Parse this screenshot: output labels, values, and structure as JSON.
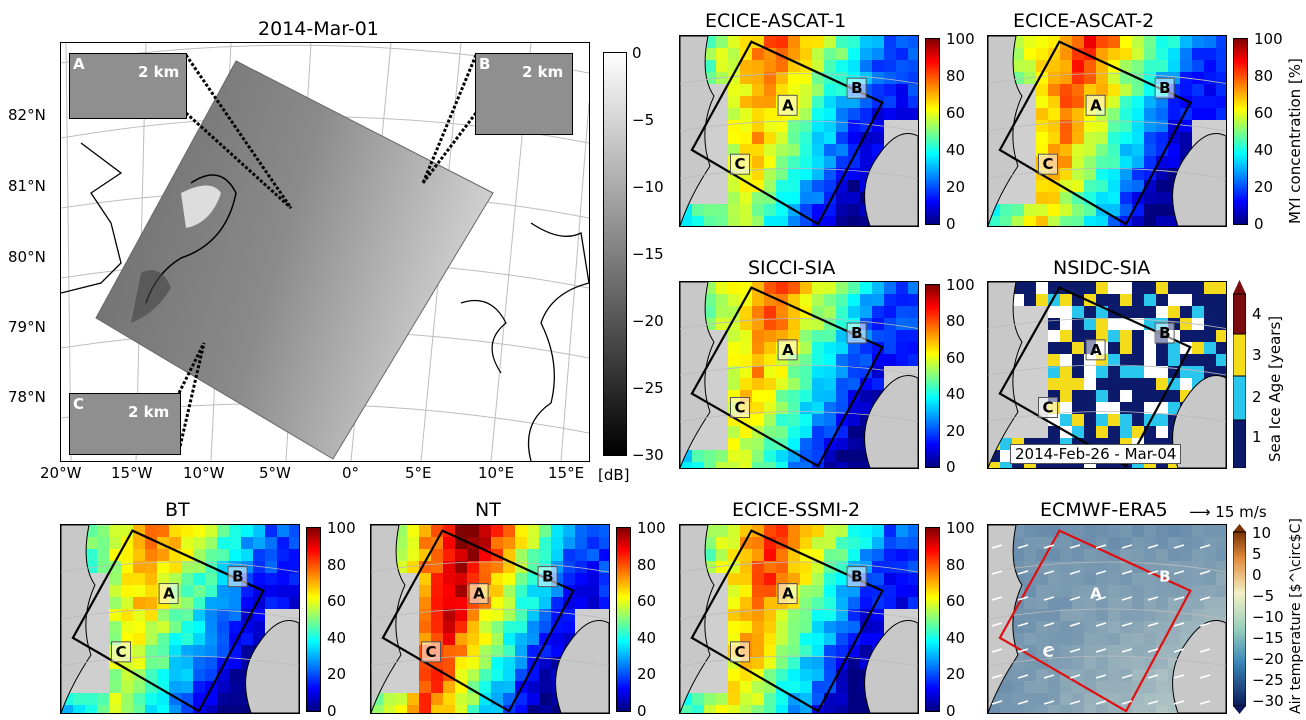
{
  "main_panel": {
    "title": "2014-Mar-01",
    "lat_ticks": [
      "82°N",
      "81°N",
      "80°N",
      "79°N",
      "78°N"
    ],
    "lon_ticks": [
      "20°W",
      "15°W",
      "10°W",
      "5°W",
      "0°",
      "5°E",
      "10°E",
      "15°E"
    ],
    "colorbar": {
      "ticks": [
        "0",
        "−5",
        "−10",
        "−15",
        "−20",
        "−25",
        "−30"
      ],
      "unit": "[dB]",
      "range": [
        -30,
        0
      ]
    },
    "insets": [
      {
        "letter": "A",
        "scale": "2 km"
      },
      {
        "letter": "B",
        "scale": "2 km"
      },
      {
        "letter": "C",
        "scale": "2 km"
      }
    ]
  },
  "panels": [
    {
      "id": "ecice-ascat-1",
      "title": "ECICE-ASCAT-1",
      "labels": [
        "A",
        "B",
        "C"
      ],
      "box_color": "#000000"
    },
    {
      "id": "ecice-ascat-2",
      "title": "ECICE-ASCAT-2",
      "labels": [
        "A",
        "B",
        "C"
      ],
      "box_color": "#000000"
    },
    {
      "id": "sicci-sia",
      "title": "SICCI-SIA",
      "labels": [
        "A",
        "B",
        "C"
      ],
      "box_color": "#000000"
    },
    {
      "id": "nsidc-sia",
      "title": "NSIDC-SIA",
      "labels": [
        "A",
        "B",
        "C"
      ],
      "box_color": "#000000",
      "date_range": "2014-Feb-26 - Mar-04"
    },
    {
      "id": "bt",
      "title": "BT",
      "labels": [
        "A",
        "B",
        "C"
      ],
      "box_color": "#000000"
    },
    {
      "id": "nt",
      "title": "NT",
      "labels": [
        "A",
        "B",
        "C"
      ],
      "box_color": "#000000"
    },
    {
      "id": "ecice-ssmi-2",
      "title": "ECICE-SSMI-2",
      "labels": [
        "A",
        "B",
        "C"
      ],
      "box_color": "#000000"
    },
    {
      "id": "ecmwf-era5",
      "title": "ECMWF-ERA5",
      "labels": [
        "A",
        "B",
        "C"
      ],
      "box_color": "#e01010",
      "wind_key": "15 m/s"
    }
  ],
  "colorbars": {
    "myi": {
      "ticks": [
        "100",
        "80",
        "60",
        "40",
        "20",
        "0"
      ],
      "label": "MYI concentration [%]",
      "range": [
        0,
        100
      ]
    },
    "plain": {
      "ticks": [
        "100",
        "80",
        "60",
        "40",
        "20",
        "0"
      ],
      "range": [
        0,
        100
      ]
    },
    "age": {
      "ticks": [
        "4",
        "3",
        "2",
        "1"
      ],
      "label": "Sea Ice Age [years]",
      "colors": [
        "#0b1a6b",
        "#29c6ee",
        "#f5dc1a",
        "#7a0d0d"
      ]
    },
    "temp": {
      "ticks": [
        "10",
        "5",
        "0",
        "−5",
        "−10",
        "−15",
        "−20",
        "−25",
        "−30"
      ],
      "label": "Air temperature [$^\\circ$C]",
      "range": [
        -30,
        10
      ]
    }
  },
  "colors": {
    "jet_low": "#00007f",
    "jet_high": "#7f0000",
    "land": "#c8c8c8"
  }
}
